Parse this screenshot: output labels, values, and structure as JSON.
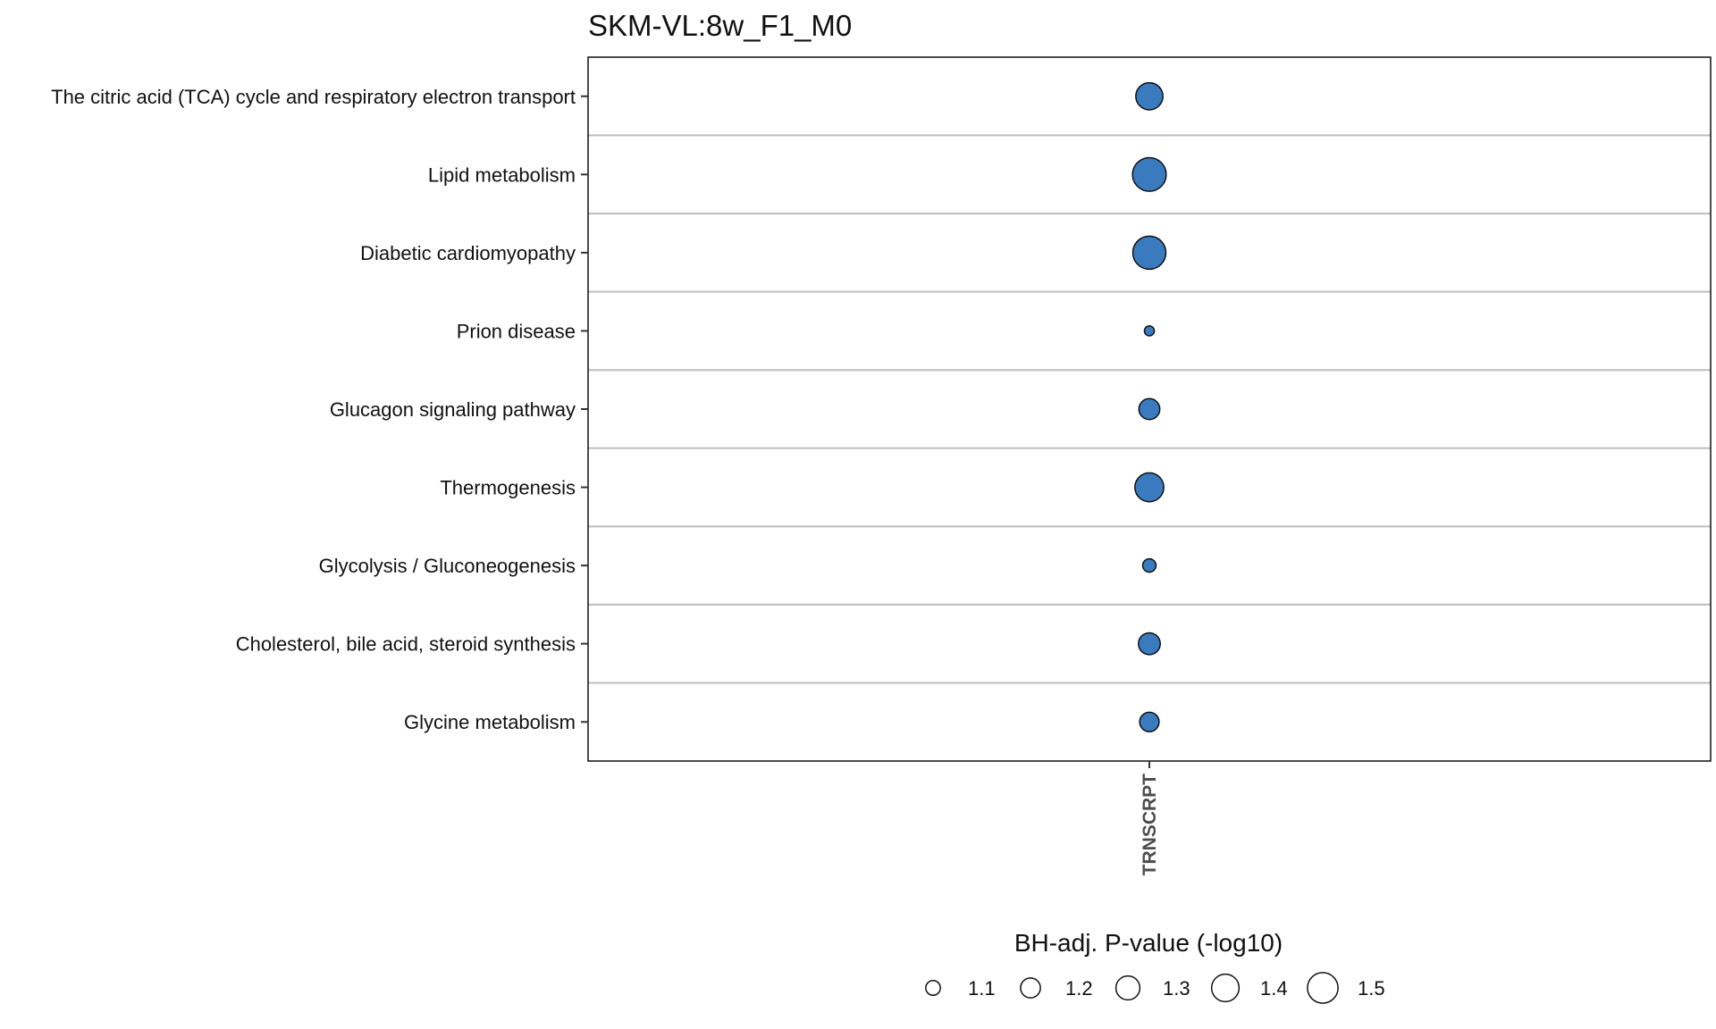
{
  "chart_data": {
    "type": "scatter",
    "title": "SKM-VL:8w_F1_M0",
    "x_categories": [
      "TRNSCRPT"
    ],
    "y_categories": [
      "The citric acid (TCA) cycle and respiratory electron transport",
      "Lipid metabolism",
      "Diabetic cardiomyopathy",
      "Prion disease",
      "Glucagon signaling pathway",
      "Thermogenesis",
      "Glycolysis / Gluconeogenesis",
      "Cholesterol, bile acid, steroid synthesis",
      "Glycine metabolism"
    ],
    "points": [
      {
        "x": "TRNSCRPT",
        "y": "The citric acid (TCA) cycle and respiratory electron transport",
        "value": 1.35
      },
      {
        "x": "TRNSCRPT",
        "y": "Lipid metabolism",
        "value": 1.55
      },
      {
        "x": "TRNSCRPT",
        "y": "Diabetic cardiomyopathy",
        "value": 1.53
      },
      {
        "x": "TRNSCRPT",
        "y": "Prion disease",
        "value": 1.03
      },
      {
        "x": "TRNSCRPT",
        "y": "Glucagon signaling pathway",
        "value": 1.2
      },
      {
        "x": "TRNSCRPT",
        "y": "Thermogenesis",
        "value": 1.4
      },
      {
        "x": "TRNSCRPT",
        "y": "Glycolysis / Gluconeogenesis",
        "value": 1.07
      },
      {
        "x": "TRNSCRPT",
        "y": "Cholesterol, bile acid, steroid synthesis",
        "value": 1.22
      },
      {
        "x": "TRNSCRPT",
        "y": "Glycine metabolism",
        "value": 1.17
      }
    ],
    "size_legend": {
      "title": "BH-adj. P-value (-log10)",
      "breaks": [
        1.1,
        1.2,
        1.3,
        1.4,
        1.5
      ],
      "labels": [
        "1.1",
        "1.2",
        "1.3",
        "1.4",
        "1.5"
      ],
      "position": "bottom"
    },
    "grid": "horizontal lines between rows",
    "colors": {
      "point_fill": "#3a7bbf",
      "point_stroke": "#111111",
      "panel_border": "#111111",
      "grid": "#bdbdbd"
    }
  }
}
